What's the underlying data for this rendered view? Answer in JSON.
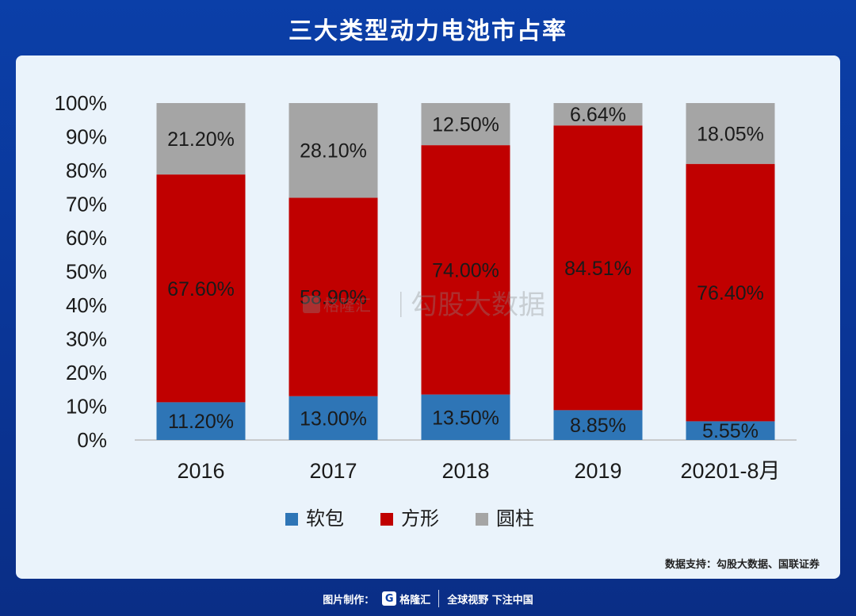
{
  "header": {
    "title": "三大类型动力电池市占率"
  },
  "chart_data": {
    "type": "bar",
    "stacked": true,
    "categories": [
      "2016",
      "2017",
      "2018",
      "2019",
      "20201-8月"
    ],
    "series": [
      {
        "name": "软包",
        "color": "#2e75b6",
        "values": [
          11.2,
          13.0,
          13.5,
          8.85,
          5.55
        ],
        "labels": [
          "11.20%",
          "13.00%",
          "13.50%",
          "8.85%",
          "5.55%"
        ]
      },
      {
        "name": "方形",
        "color": "#c00000",
        "values": [
          67.6,
          58.9,
          74.0,
          84.51,
          76.4
        ],
        "labels": [
          "67.60%",
          "58.90%",
          "74.00%",
          "84.51%",
          "76.40%"
        ]
      },
      {
        "name": "圆柱",
        "color": "#a5a5a5",
        "values": [
          21.2,
          28.1,
          12.5,
          6.64,
          18.05
        ],
        "labels": [
          "21.20%",
          "28.10%",
          "12.50%",
          "6.64%",
          "18.05%"
        ]
      }
    ],
    "ylim": [
      0,
      100
    ],
    "yticks": [
      "0%",
      "10%",
      "20%",
      "30%",
      "40%",
      "50%",
      "60%",
      "70%",
      "80%",
      "90%",
      "100%"
    ],
    "legend_position": "bottom",
    "grid": false
  },
  "watermark": {
    "brand": "格隆汇",
    "text": "勾股大数据"
  },
  "source": "数据支持：勾股大数据、国联证券",
  "footer": {
    "made_by": "图片制作：",
    "brand": "格隆汇",
    "slogan": "全球视野 下注中国"
  }
}
